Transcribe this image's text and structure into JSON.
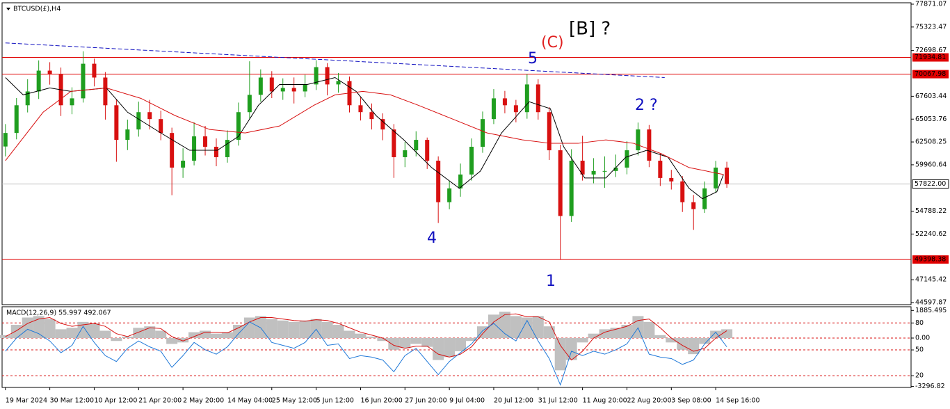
{
  "chart_data": [
    {
      "type": "candlestick",
      "title": "BTCUSD(£),H4",
      "xlim": [
        -0.3,
        81.6
      ],
      "ylim": [
        44366,
        78025
      ],
      "xticks": [
        {
          "value": 0,
          "label": "19 Mar 2024"
        },
        {
          "value": 4,
          "label": "30 Mar 12:00"
        },
        {
          "value": 8,
          "label": "10 Apr 12:00"
        },
        {
          "value": 12,
          "label": "21 Apr 20:00"
        },
        {
          "value": 16,
          "label": "2 May 20:00"
        },
        {
          "value": 20,
          "label": "14 May 04:00"
        },
        {
          "value": 24,
          "label": "25 May 12:00"
        },
        {
          "value": 28,
          "label": "5 Jun 12:00"
        },
        {
          "value": 32,
          "label": "16 Jun 20:00"
        },
        {
          "value": 36,
          "label": "27 Jun 20:00"
        },
        {
          "value": 40,
          "label": "9 Jul 04:00"
        },
        {
          "value": 44,
          "label": "20 Jul 12:00"
        },
        {
          "value": 48,
          "label": "31 Jul 12:00"
        },
        {
          "value": 52,
          "label": "11 Aug 20:00"
        },
        {
          "value": 56,
          "label": "22 Aug 20:00"
        },
        {
          "value": 60,
          "label": "3 Sep 08:00"
        },
        {
          "value": 64,
          "label": "14 Sep 16:00"
        }
      ],
      "yticks": [
        77871.07,
        75323.47,
        72698.67,
        67603.44,
        65053.76,
        62508.25,
        59960.64,
        54788.22,
        52240.62,
        47145.42,
        44597.87
      ],
      "up_color": "#1f9e1f",
      "down_color": "#d81010",
      "ohlc": [
        [
          62000,
          64500,
          60900,
          63510
        ],
        [
          63510,
          67400,
          62800,
          66600
        ],
        [
          66600,
          69500,
          65800,
          68140
        ],
        [
          68140,
          71600,
          67300,
          70460
        ],
        [
          70460,
          71400,
          68900,
          70070
        ],
        [
          70070,
          70800,
          65400,
          66600
        ],
        [
          66600,
          68600,
          65600,
          67370
        ],
        [
          67370,
          72620,
          66900,
          71230
        ],
        [
          71230,
          71800,
          68700,
          69690
        ],
        [
          69690,
          70300,
          65000,
          66600
        ],
        [
          66600,
          67300,
          60300,
          62740
        ],
        [
          62740,
          65000,
          61600,
          63900
        ],
        [
          63900,
          67000,
          63100,
          65830
        ],
        [
          65830,
          67200,
          63900,
          65060
        ],
        [
          65060,
          66000,
          62700,
          63510
        ],
        [
          63510,
          64100,
          56570,
          59650
        ],
        [
          59650,
          61800,
          58500,
          60420
        ],
        [
          60420,
          64700,
          59900,
          63130
        ],
        [
          63130,
          64300,
          61000,
          61970
        ],
        [
          61970,
          62900,
          59800,
          60810
        ],
        [
          60810,
          63800,
          60200,
          62740
        ],
        [
          62740,
          66900,
          62100,
          65830
        ],
        [
          65830,
          71500,
          65100,
          67760
        ],
        [
          67760,
          70600,
          67000,
          69690
        ],
        [
          69690,
          70400,
          67400,
          68140
        ],
        [
          68140,
          69600,
          67200,
          68530
        ],
        [
          68530,
          69700,
          66800,
          68140
        ],
        [
          68140,
          70000,
          67500,
          68920
        ],
        [
          68920,
          71620,
          68300,
          70850
        ],
        [
          70850,
          71300,
          67700,
          68920
        ],
        [
          68920,
          70200,
          68000,
          69300
        ],
        [
          69300,
          69800,
          65800,
          66600
        ],
        [
          66600,
          67500,
          64900,
          65830
        ],
        [
          65830,
          66800,
          63900,
          65060
        ],
        [
          65060,
          65700,
          62700,
          63900
        ],
        [
          63900,
          64500,
          58500,
          60810
        ],
        [
          60810,
          62500,
          59700,
          61580
        ],
        [
          61580,
          63700,
          60900,
          62740
        ],
        [
          62740,
          63000,
          59500,
          60420
        ],
        [
          60420,
          60900,
          53470,
          55790
        ],
        [
          55790,
          58200,
          55000,
          57330
        ],
        [
          57330,
          60100,
          56400,
          58880
        ],
        [
          58880,
          62900,
          58200,
          61970
        ],
        [
          61970,
          65900,
          61300,
          65060
        ],
        [
          65060,
          68400,
          64500,
          67370
        ],
        [
          67370,
          68200,
          65700,
          66600
        ],
        [
          66600,
          67200,
          64700,
          65830
        ],
        [
          65830,
          70070,
          65100,
          68920
        ],
        [
          68920,
          69500,
          65000,
          65830
        ],
        [
          65830,
          66400,
          60500,
          61580
        ],
        [
          61580,
          62200,
          49398,
          54250
        ],
        [
          54250,
          61700,
          53600,
          60420
        ],
        [
          60420,
          63200,
          58200,
          58880
        ],
        [
          58880,
          60700,
          57900,
          59270
        ],
        [
          59270,
          60900,
          57400,
          59270
        ],
        [
          59270,
          61100,
          58600,
          59650
        ],
        [
          59650,
          62600,
          58900,
          61580
        ],
        [
          61580,
          64670,
          61000,
          63900
        ],
        [
          63900,
          64400,
          59700,
          60420
        ],
        [
          60420,
          61200,
          57600,
          58490
        ],
        [
          58490,
          59400,
          57200,
          58110
        ],
        [
          58110,
          58700,
          54700,
          55790
        ],
        [
          55790,
          56600,
          52700,
          55020
        ],
        [
          55020,
          58100,
          54600,
          57330
        ],
        [
          57330,
          60400,
          56900,
          59650
        ],
        [
          59650,
          60300,
          57400,
          57822
        ]
      ],
      "lines": [
        {
          "color": "#000000",
          "dashed": false,
          "x": [
            0,
            1.6,
            4,
            5.9,
            9.1,
            11,
            14,
            16.6,
            19.1,
            21,
            22.8,
            24.7,
            27.2,
            29.7,
            31.6,
            33.4,
            35.9,
            38.4,
            40.9,
            42.8,
            44.7,
            47.2,
            49.1,
            50.3,
            52.2,
            54.1,
            55.9,
            57.8,
            59.7,
            61.6,
            62.8,
            64.1,
            64.7
          ],
          "values": [
            69688,
            67758,
            68530,
            68144,
            68530,
            65828,
            63512,
            61582,
            61582,
            63126,
            66600,
            68916,
            68916,
            69688,
            68144,
            65442,
            62740,
            59652,
            57336,
            59266,
            63512,
            66986,
            66214,
            61968,
            58494,
            58494,
            60810,
            61582,
            60810,
            57336,
            56178,
            56950,
            58880
          ]
        },
        {
          "color": "#d81010",
          "dashed": false,
          "x": [
            0,
            3.4,
            5.9,
            9.1,
            12.2,
            15.3,
            18.4,
            21.6,
            24.7,
            27.8,
            29.7,
            32.2,
            34.7,
            37.2,
            40.3,
            43.4,
            46.6,
            49.1,
            51.6,
            54.1,
            56.6,
            59.1,
            61.6,
            64.7
          ],
          "values": [
            60424,
            65828,
            68144,
            68530,
            67372,
            65442,
            63898,
            63512,
            64284,
            66600,
            67758,
            68144,
            67758,
            66600,
            65056,
            63512,
            62740,
            62354,
            62354,
            62740,
            62354,
            61196,
            59652,
            58880
          ]
        },
        {
          "color": "#1010c0",
          "dashed": true,
          "x": [
            0,
            59.4
          ],
          "values": [
            73548,
            69688
          ]
        }
      ],
      "hlines": {
        "color": "#e00000",
        "values": [
          71934.81,
          70067.98,
          49398.38
        ]
      },
      "last_price": {
        "value": 57822,
        "label": "57822.00"
      },
      "annotations": [
        {
          "text": "[B] ?",
          "color": "#000000"
        },
        {
          "text": "(C)",
          "color": "#e02020"
        },
        {
          "text": "5",
          "color": "#1010c0"
        },
        {
          "text": "2 ?",
          "color": "#1010c0"
        },
        {
          "text": "4",
          "color": "#1010c0"
        },
        {
          "text": "1",
          "color": "#1010c0"
        }
      ]
    },
    {
      "type": "macd",
      "title": "MACD(12,26,9) 55.997 492.067",
      "xlim": [
        -0.3,
        81.6
      ],
      "ylim": [
        -3372,
        2137
      ],
      "yticks": [
        1885.495,
        {
          "value": 1030,
          "label": "80"
        },
        {
          "value": 0,
          "label": "0.00"
        },
        {
          "value": -810,
          "label": "50"
        },
        {
          "value": -2570,
          "label": "20"
        },
        -3296.82
      ],
      "histogram": {
        "color": "#c0c0c0",
        "values": [
          200,
          900,
          1400,
          1500,
          1300,
          600,
          700,
          1100,
          1000,
          500,
          -200,
          100,
          700,
          800,
          500,
          -400,
          -300,
          400,
          500,
          300,
          400,
          900,
          1400,
          1500,
          1300,
          1200,
          1100,
          1200,
          1300,
          1100,
          900,
          500,
          300,
          100,
          -200,
          -800,
          -700,
          -400,
          -600,
          -1500,
          -1300,
          -900,
          -200,
          800,
          1600,
          1800,
          1500,
          1400,
          1500,
          800,
          -2200,
          -1500,
          -300,
          300,
          600,
          700,
          900,
          1500,
          1100,
          200,
          -300,
          -800,
          -1100,
          -400,
          500,
          600
        ]
      },
      "series": [
        {
          "color": "#d81010",
          "values": [
            100,
            500,
            1000,
            1300,
            1400,
            1000,
            800,
            900,
            1000,
            800,
            300,
            100,
            400,
            700,
            650,
            100,
            -200,
            100,
            400,
            400,
            350,
            700,
            1100,
            1400,
            1400,
            1300,
            1200,
            1150,
            1250,
            1200,
            1000,
            700,
            400,
            200,
            0,
            -500,
            -700,
            -550,
            -550,
            -1100,
            -1300,
            -1100,
            -600,
            300,
            1100,
            1600,
            1650,
            1450,
            1450,
            1100,
            -500,
            -1500,
            -900,
            0,
            400,
            600,
            800,
            1200,
            1300,
            700,
            0,
            -500,
            -900,
            -700,
            0,
            500
          ]
        },
        {
          "color": "#1e78d8",
          "values": [
            -900,
            0,
            600,
            300,
            -200,
            -1000,
            -500,
            800,
            -300,
            -1200,
            -1600,
            -700,
            -200,
            -600,
            -900,
            -2000,
            -1200,
            -300,
            -800,
            -1100,
            -600,
            300,
            1100,
            700,
            -300,
            -500,
            -700,
            -300,
            600,
            -500,
            -400,
            -1400,
            -1200,
            -1300,
            -1500,
            -2300,
            -1200,
            -700,
            -1600,
            -2500,
            -1600,
            -1000,
            -400,
            500,
            1000,
            300,
            -200,
            1200,
            -200,
            -1400,
            -3200,
            -900,
            -1200,
            -900,
            -1100,
            -800,
            -400,
            700,
            -1100,
            -1300,
            -1400,
            -1800,
            -1500,
            -400,
            400,
            -600
          ]
        }
      ]
    }
  ]
}
